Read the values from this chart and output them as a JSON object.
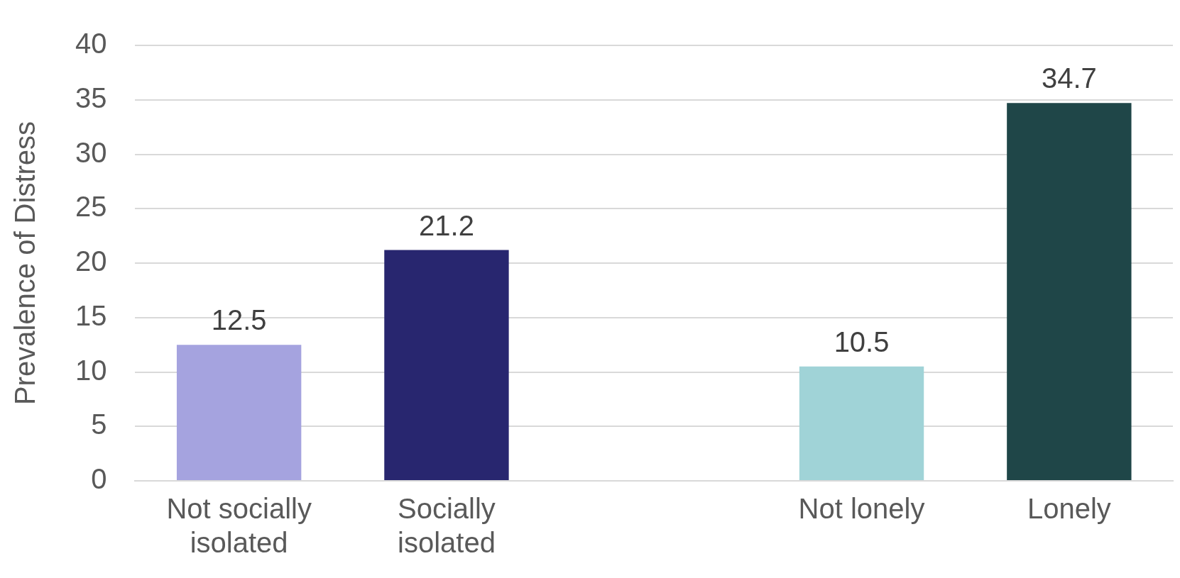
{
  "chart_data": {
    "type": "bar",
    "ylabel": "Prevalence of Distress",
    "categories": [
      "Not socially isolated",
      "Socially isolated",
      null,
      "Not lonely",
      "Lonely"
    ],
    "values": [
      12.5,
      21.2,
      null,
      10.5,
      34.7
    ],
    "colors": [
      "#a5a3df",
      "#28266f",
      null,
      "#a0d3d7",
      "#1f4648"
    ],
    "ylim": [
      0,
      40
    ],
    "yticks": [
      0,
      5,
      10,
      15,
      20,
      25,
      30,
      35,
      40
    ],
    "grid": "y",
    "data_labels": true,
    "legend": false
  }
}
